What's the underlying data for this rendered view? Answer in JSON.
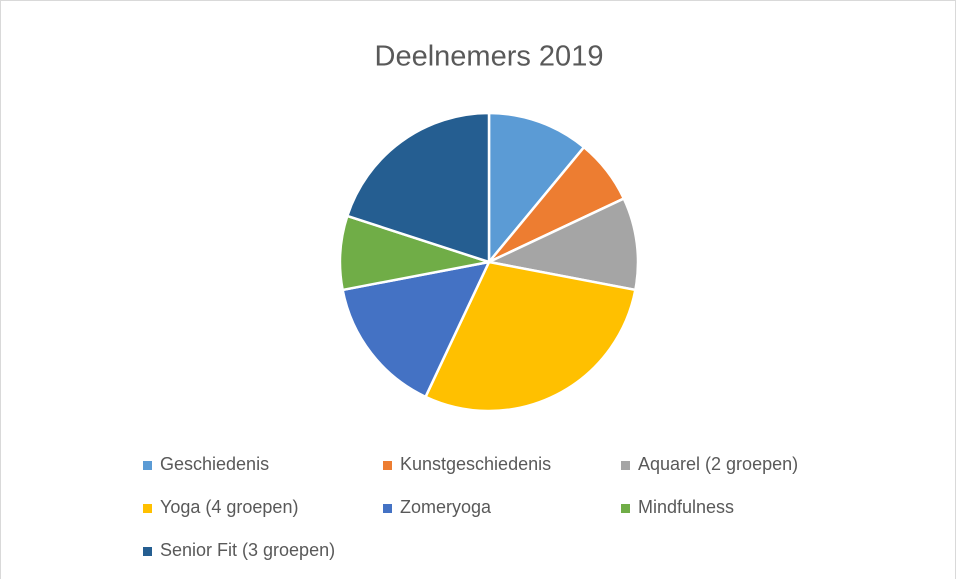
{
  "chart_data": {
    "type": "pie",
    "title": "Deelnemers 2019",
    "categories": [
      "Geschiedenis",
      "Kunstgeschiedenis",
      "Aquarel (2 groepen)",
      "Yoga (4 groepen)",
      "Zomeryoga",
      "Mindfulness",
      "Senior Fit (3 groepen)"
    ],
    "values": [
      11,
      7,
      10,
      29,
      15,
      8,
      20
    ],
    "colors": [
      "#5b9bd5",
      "#ed7d31",
      "#a5a5a5",
      "#ffc000",
      "#4472c4",
      "#70ad47",
      "#255e91"
    ],
    "legend": "bottom"
  }
}
